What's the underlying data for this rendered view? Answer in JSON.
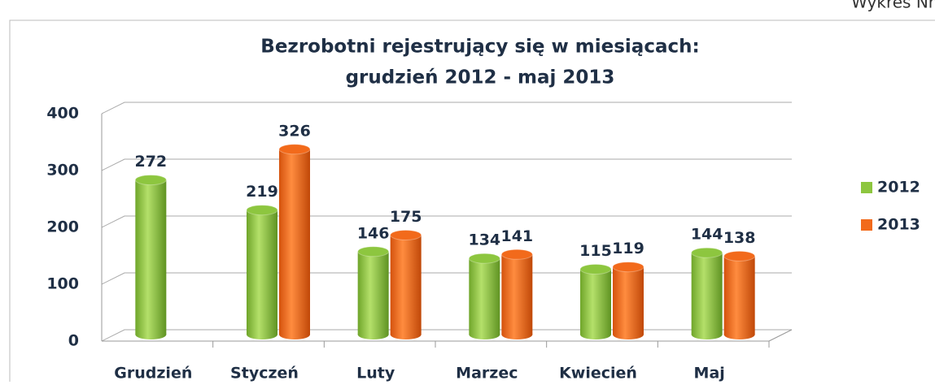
{
  "chart_data": {
    "type": "bar",
    "title": "Bezrobotni rejestrujący się w miesiącach:",
    "subtitle": "grudzień 2012 - maj 2013",
    "annotation": "Wykres Nr",
    "categories": [
      "Grudzień",
      "Styczeń",
      "Luty",
      "Marzec",
      "Kwiecień",
      "Maj"
    ],
    "series": [
      {
        "name": "2012",
        "color": "#8dc63f",
        "values": [
          272,
          219,
          146,
          134,
          115,
          144
        ]
      },
      {
        "name": "2013",
        "color": "#f26a1b",
        "values": [
          null,
          326,
          175,
          141,
          119,
          138
        ]
      }
    ],
    "ylim": [
      0,
      400
    ],
    "yticks": [
      0,
      100,
      200,
      300,
      400
    ],
    "grid": true,
    "legend": "right"
  }
}
